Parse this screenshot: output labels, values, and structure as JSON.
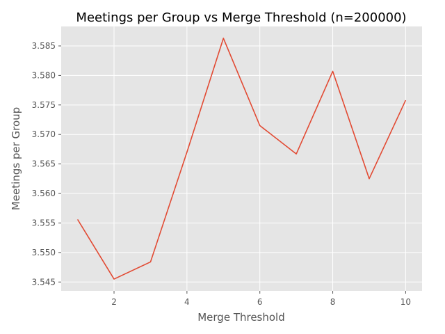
{
  "chart_data": {
    "type": "line",
    "title": "Meetings per Group vs Merge Threshold (n=200000)",
    "xlabel": "Merge Threshold",
    "ylabel": "Meetings per Group",
    "x": [
      1,
      2,
      3,
      4,
      5,
      6,
      7,
      8,
      9,
      10
    ],
    "series": [
      {
        "values": [
          3.5556,
          3.5455,
          3.5484,
          3.567,
          3.5863,
          3.5715,
          3.5667,
          3.5807,
          3.5625,
          3.5758
        ],
        "color": "#e24a33"
      }
    ],
    "xlim": [
      0.55,
      10.45
    ],
    "ylim": [
      3.5435,
      3.5883
    ],
    "xticks": [
      2,
      4,
      6,
      8,
      10
    ],
    "xtick_labels": [
      "2",
      "4",
      "6",
      "8",
      "10"
    ],
    "yticks": [
      3.545,
      3.55,
      3.555,
      3.56,
      3.565,
      3.57,
      3.575,
      3.58,
      3.585
    ],
    "ytick_labels": [
      "3.545",
      "3.550",
      "3.555",
      "3.560",
      "3.565",
      "3.570",
      "3.575",
      "3.580",
      "3.585"
    ],
    "grid": true,
    "style": "ggplot",
    "plot_background": "#e5e5e5"
  }
}
